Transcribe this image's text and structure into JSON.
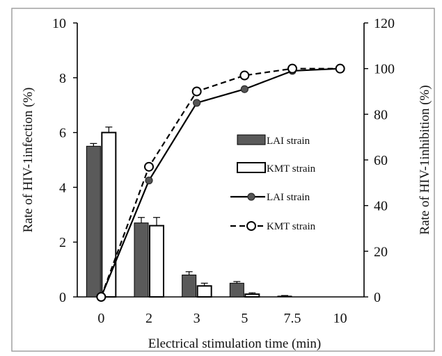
{
  "chart_data": {
    "type": "bar",
    "categories": [
      "0",
      "2",
      "3",
      "5",
      "7.5",
      "10"
    ],
    "xlabel": "Electrical stimulation time (min)",
    "ylabel_left": "Rate of HIV-1infection (%)",
    "ylabel_right": "Rate of HIV-1inhibition (%)",
    "ylim_left": [
      0,
      10
    ],
    "ylim_right": [
      0,
      120
    ],
    "yticks_left": [
      "0",
      "2",
      "4",
      "6",
      "8",
      "10"
    ],
    "yticks_right": [
      "0",
      "20",
      "40",
      "60",
      "80",
      "100",
      "120"
    ],
    "grid": false,
    "legend_position": "right-middle",
    "bar_series": [
      {
        "name": "LAI strain",
        "axis": "left",
        "color": "#5a5a5a",
        "values": [
          5.5,
          2.7,
          0.8,
          0.5,
          0.03,
          0
        ],
        "errors": [
          0.1,
          0.2,
          0.12,
          0.06,
          0.02,
          0
        ]
      },
      {
        "name": "KMT strain",
        "axis": "left",
        "color": "#ffffff",
        "values": [
          6.0,
          2.6,
          0.4,
          0.1,
          0,
          0
        ],
        "errors": [
          0.2,
          0.3,
          0.1,
          0.05,
          0,
          0
        ]
      }
    ],
    "line_series": [
      {
        "name": "LAI strain",
        "axis": "right",
        "style": "solid",
        "marker": "filled-circle",
        "values": [
          0,
          51,
          85,
          91,
          99,
          100
        ]
      },
      {
        "name": "KMT strain",
        "axis": "right",
        "style": "dashed",
        "marker": "open-circle",
        "values": [
          0,
          57,
          90,
          97,
          100,
          100
        ]
      }
    ]
  }
}
